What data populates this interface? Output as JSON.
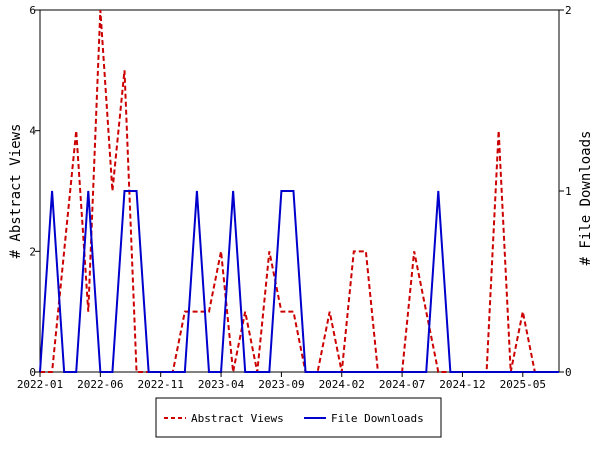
{
  "chart_data": {
    "type": "line",
    "x": [
      "2022-01",
      "2022-02",
      "2022-03",
      "2022-04",
      "2022-05",
      "2022-06",
      "2022-07",
      "2022-08",
      "2022-09",
      "2022-10",
      "2022-11",
      "2022-12",
      "2023-01",
      "2023-02",
      "2023-03",
      "2023-04",
      "2023-05",
      "2023-06",
      "2023-07",
      "2023-08",
      "2023-09",
      "2023-10",
      "2023-11",
      "2023-12",
      "2024-01",
      "2024-02",
      "2024-03",
      "2024-04",
      "2024-05",
      "2024-06",
      "2024-07",
      "2024-08",
      "2024-09",
      "2024-10",
      "2024-11",
      "2024-12",
      "2025-01",
      "2025-02",
      "2025-03",
      "2025-04",
      "2025-05",
      "2025-06",
      "2025-07",
      "2025-08"
    ],
    "x_ticks": [
      "2022-01",
      "2022-06",
      "2022-11",
      "2023-04",
      "2023-09",
      "2024-02",
      "2024-07",
      "2024-12",
      "2025-05"
    ],
    "xlim": [
      "2022-01",
      "2025-08"
    ],
    "series": [
      {
        "name": "Abstract Views",
        "axis": "left",
        "color": "#cc0000",
        "dash": "dashed",
        "values": [
          0,
          0,
          2,
          4,
          1,
          6,
          3,
          5,
          0,
          0,
          0,
          0,
          1,
          1,
          1,
          2,
          0,
          1,
          0,
          2,
          1,
          1,
          0,
          0,
          1,
          0,
          2,
          2,
          0,
          0,
          0,
          2,
          1,
          0,
          0,
          0,
          0,
          0,
          4,
          0,
          1,
          0,
          0,
          0
        ]
      },
      {
        "name": "File Downloads",
        "axis": "right",
        "color": "#0000cc",
        "dash": "solid",
        "values": [
          0,
          1,
          0,
          0,
          1,
          0,
          0,
          1,
          1,
          0,
          0,
          0,
          0,
          1,
          0,
          0,
          1,
          0,
          0,
          0,
          1,
          1,
          0,
          0,
          0,
          0,
          0,
          0,
          0,
          0,
          0,
          0,
          0,
          1,
          0,
          0,
          0,
          0,
          0,
          0,
          0,
          0,
          0,
          0
        ]
      }
    ],
    "y_left": {
      "label": "# Abstract Views",
      "lim": [
        0,
        6
      ],
      "ticks": [
        "0",
        "2",
        "4",
        "6"
      ]
    },
    "y_right": {
      "label": "# File Downloads",
      "lim": [
        0,
        2
      ],
      "ticks": [
        "0",
        "1",
        "2"
      ]
    },
    "grid": false,
    "legend": {
      "position": "bottom",
      "items": [
        "Abstract Views",
        "File Downloads"
      ]
    }
  }
}
